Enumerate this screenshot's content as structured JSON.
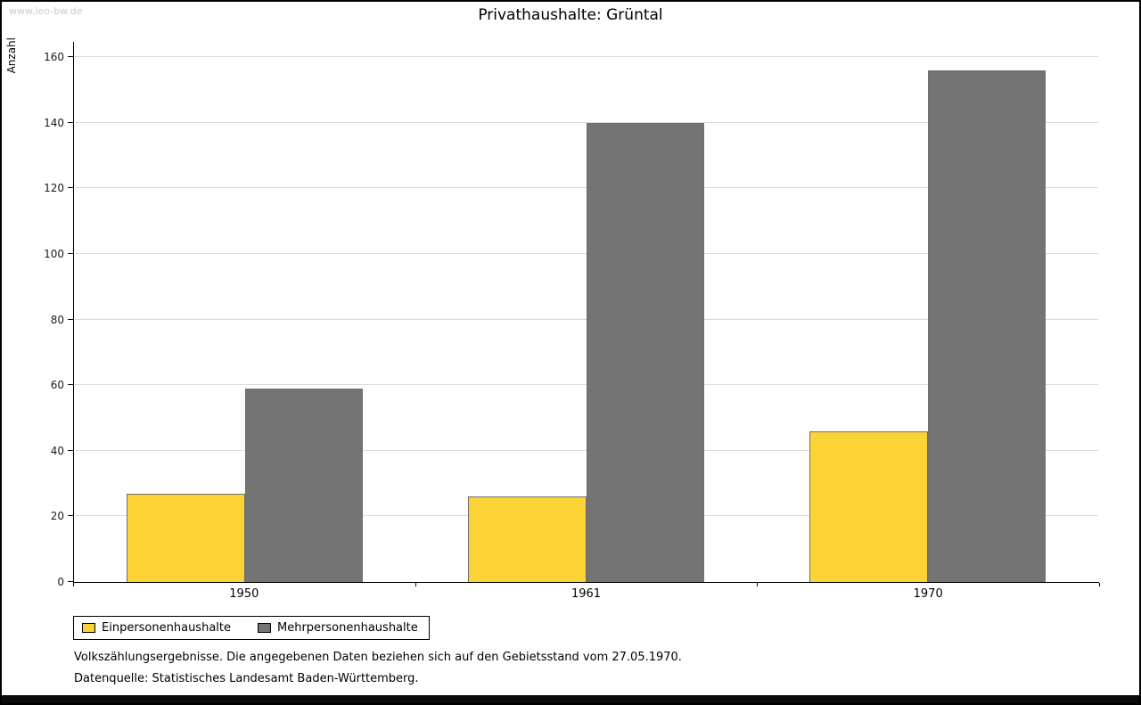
{
  "watermark": "www.leo-bw.de",
  "title": "Privathaushalte: Grüntal",
  "chart_data": {
    "type": "bar",
    "categories": [
      "1950",
      "1961",
      "1970"
    ],
    "series": [
      {
        "name": "Einpersonenhaushalte",
        "color": "#fbd335",
        "values": [
          27,
          26,
          46
        ]
      },
      {
        "name": "Mehrpersonenhaushalte",
        "color": "#747474",
        "values": [
          59,
          140,
          156
        ]
      }
    ],
    "title": "Privathaushalte: Grüntal",
    "xlabel": "",
    "ylabel": "Anzahl",
    "ylim": [
      0,
      160
    ],
    "ytick_step": 20,
    "grid": true,
    "legend_position": "bottom-left"
  },
  "footnotes": [
    "Volkszählungsergebnisse. Die angegebenen Daten beziehen sich auf den Gebietsstand vom 27.05.1970.",
    "Datenquelle: Statistisches Landesamt Baden-Württemberg."
  ]
}
